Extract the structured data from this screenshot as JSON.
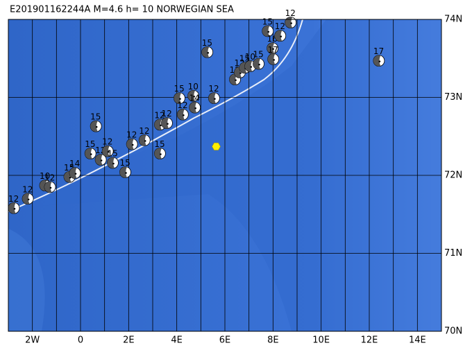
{
  "chart_data": {
    "type": "map",
    "title": "E201901162244A M=4.6 h= 10 NORWEGIAN SEA",
    "xlim": [
      -3,
      15
    ],
    "ylim": [
      70,
      74
    ],
    "xticks": [
      {
        "value": -2,
        "label": "2W"
      },
      0,
      {
        "value": 2,
        "label": "2E"
      },
      {
        "value": 4,
        "label": "4E"
      },
      {
        "value": 6,
        "label": "6E"
      },
      {
        "value": 8,
        "label": "8E"
      },
      {
        "value": 10,
        "label": "10E"
      },
      {
        "value": 12,
        "label": "12E"
      },
      {
        "value": 14,
        "label": "14E"
      }
    ],
    "yticks": [
      {
        "value": 70,
        "label": "70N"
      },
      {
        "value": 71,
        "label": "71N"
      },
      {
        "value": 72,
        "label": "72N"
      },
      {
        "value": 73,
        "label": "73N"
      },
      {
        "value": 74,
        "label": "74N"
      }
    ],
    "grid": true,
    "epicenter": {
      "x": 5.64,
      "y": 72.37,
      "color": "#ffee00"
    },
    "events": [
      {
        "x": -2.77,
        "y": 71.58,
        "label": "12"
      },
      {
        "x": -2.19,
        "y": 71.7,
        "label": "12"
      },
      {
        "x": -1.47,
        "y": 71.87,
        "label": "10"
      },
      {
        "x": -1.27,
        "y": 71.85,
        "label": "12"
      },
      {
        "x": -0.46,
        "y": 71.98,
        "label": "15"
      },
      {
        "x": -0.23,
        "y": 72.03,
        "label": "14"
      },
      {
        "x": 0.41,
        "y": 72.28,
        "label": "15"
      },
      {
        "x": 0.84,
        "y": 72.2,
        "label": "12"
      },
      {
        "x": 1.13,
        "y": 72.31,
        "label": "12"
      },
      {
        "x": 1.34,
        "y": 72.16,
        "label": "15"
      },
      {
        "x": 1.86,
        "y": 72.04,
        "label": "15"
      },
      {
        "x": 0.64,
        "y": 72.63,
        "label": "15"
      },
      {
        "x": 2.14,
        "y": 72.4,
        "label": "12"
      },
      {
        "x": 2.66,
        "y": 72.45,
        "label": "12"
      },
      {
        "x": 3.3,
        "y": 72.28,
        "label": "15"
      },
      {
        "x": 3.3,
        "y": 72.65,
        "label": "12"
      },
      {
        "x": 3.59,
        "y": 72.67,
        "label": "12"
      },
      {
        "x": 4.11,
        "y": 72.99,
        "label": "15"
      },
      {
        "x": 4.25,
        "y": 72.78,
        "label": "12"
      },
      {
        "x": 4.69,
        "y": 73.02,
        "label": "10"
      },
      {
        "x": 4.75,
        "y": 72.87,
        "label": "14"
      },
      {
        "x": 5.55,
        "y": 72.99,
        "label": "12"
      },
      {
        "x": 5.27,
        "y": 73.58,
        "label": "15"
      },
      {
        "x": 6.42,
        "y": 73.23,
        "label": "12"
      },
      {
        "x": 6.62,
        "y": 73.32,
        "label": "12"
      },
      {
        "x": 6.83,
        "y": 73.38,
        "label": "15"
      },
      {
        "x": 7.06,
        "y": 73.4,
        "label": "10"
      },
      {
        "x": 7.4,
        "y": 73.43,
        "label": "15"
      },
      {
        "x": 7.78,
        "y": 73.85,
        "label": "15"
      },
      {
        "x": 7.98,
        "y": 73.63,
        "label": "16"
      },
      {
        "x": 8.01,
        "y": 73.49,
        "label": "17"
      },
      {
        "x": 8.3,
        "y": 73.79,
        "label": "12"
      },
      {
        "x": 8.73,
        "y": 73.96,
        "label": "12"
      },
      {
        "x": 12.4,
        "y": 73.47,
        "label": "17"
      }
    ]
  }
}
